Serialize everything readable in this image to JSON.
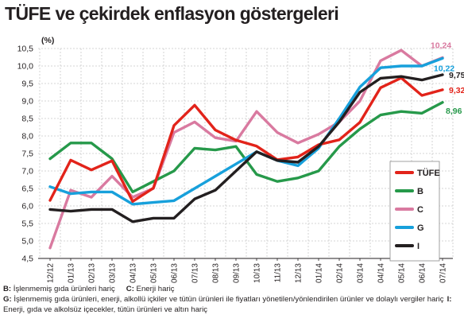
{
  "title": "TÜFE ve çekirdek enflasyon göstergeleri",
  "chart_data": {
    "type": "line",
    "unit_label": "(%)",
    "ylim": [
      4.5,
      10.5
    ],
    "yticks": [
      "10,5",
      "10,0",
      "9,5",
      "9,0",
      "8,5",
      "8,0",
      "7,5",
      "7,0",
      "6,5",
      "6,0",
      "5,5",
      "5,0",
      "4,5"
    ],
    "ytick_values": [
      10.5,
      10.0,
      9.5,
      9.0,
      8.5,
      8.0,
      7.5,
      7.0,
      6.5,
      6.0,
      5.5,
      5.0,
      4.5
    ],
    "x_labels": [
      "12/12",
      "01/13",
      "02/13",
      "03/13",
      "04/13",
      "05/13",
      "06/13",
      "07/13",
      "08/13",
      "09/13",
      "10/13",
      "11/13",
      "12/13",
      "01/14",
      "02/14",
      "03/14",
      "04/14",
      "05/14",
      "06/14",
      "07/14"
    ],
    "grid": true,
    "legend_position": "bottom-right",
    "series": [
      {
        "name": "TÜFE",
        "color": "#e2231a",
        "values": [
          6.16,
          7.31,
          7.03,
          7.29,
          6.13,
          6.51,
          8.3,
          8.88,
          8.17,
          7.88,
          7.71,
          7.32,
          7.4,
          7.75,
          7.89,
          8.39,
          9.38,
          9.66,
          9.16,
          9.32
        ],
        "end_label": "9,32"
      },
      {
        "name": "B",
        "color": "#26994a",
        "values": [
          7.35,
          7.8,
          7.8,
          7.35,
          6.4,
          6.7,
          7.0,
          7.65,
          7.6,
          7.7,
          6.9,
          6.7,
          6.8,
          7.0,
          7.7,
          8.2,
          8.6,
          8.7,
          8.65,
          8.96
        ],
        "end_label": "8,96"
      },
      {
        "name": "C",
        "color": "#d97aa0",
        "values": [
          4.8,
          6.45,
          6.25,
          6.85,
          6.25,
          6.5,
          8.1,
          8.4,
          7.95,
          7.85,
          8.7,
          8.1,
          7.8,
          8.05,
          8.4,
          9.0,
          10.15,
          10.45,
          10.0,
          10.24
        ],
        "end_label": "10,24"
      },
      {
        "name": "G",
        "color": "#17a0db",
        "values": [
          6.55,
          6.35,
          6.4,
          6.4,
          6.05,
          6.1,
          6.15,
          6.5,
          6.85,
          7.2,
          7.55,
          7.3,
          7.15,
          7.65,
          8.5,
          9.4,
          9.95,
          10.0,
          10.0,
          10.22
        ],
        "end_label": "10,22"
      },
      {
        "name": "I",
        "color": "#231f20",
        "values": [
          5.9,
          5.85,
          5.9,
          5.9,
          5.55,
          5.65,
          5.65,
          6.2,
          6.45,
          7.0,
          7.55,
          7.3,
          7.25,
          7.7,
          8.4,
          9.25,
          9.65,
          9.7,
          9.6,
          9.75
        ],
        "end_label": "9,75"
      }
    ]
  },
  "notes": {
    "b_key": "B:",
    "b_text": " İşlenmemiş gıda ürünleri hariç",
    "c_key": "C:",
    "c_text": " Enerji hariç",
    "g_key": "G:",
    "g_text": " İşlenmemiş gıda ürünleri, enerji, alkollü içkiler ve tütün ürünleri ile fiyatları yönetilen/yönlendirilen ürünler ve dolaylı vergiler hariç",
    "i_key": "I:",
    "i_text": " Enerji, gıda ve alkolsüz içecekler, tütün ürünleri ve altın hariç"
  }
}
